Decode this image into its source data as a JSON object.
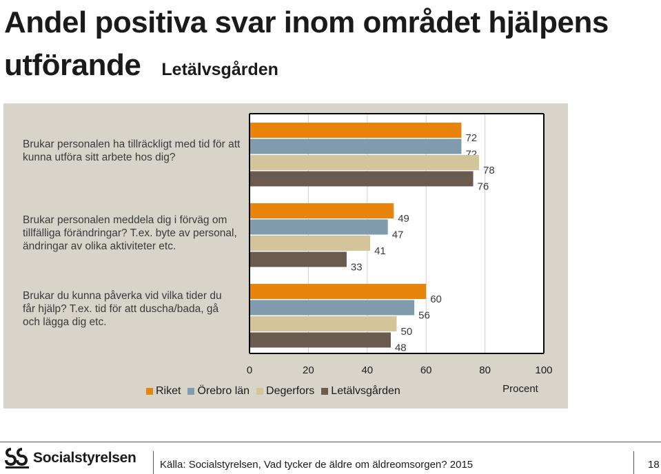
{
  "title": "Andel positiva svar inom området hjälpens utförande",
  "subtitle": "Letälvsgården",
  "chart_data": {
    "type": "bar",
    "orientation": "horizontal",
    "categories": [
      "Brukar personalen ha tillräckligt med tid för att kunna utföra sitt arbete hos dig?",
      "Brukar personalen meddela dig i förväg om tillfälliga förändringar? T.ex. byte av personal, ändringar av olika aktiviteter etc.",
      "Brukar du kunna påverka vid vilka tider du får hjälp? T.ex. tid för att duscha/bada, gå och lägga dig etc."
    ],
    "series": [
      {
        "name": "Riket",
        "color": "#e8830c",
        "values": [
          72,
          49,
          60
        ]
      },
      {
        "name": "Örebro län",
        "color": "#7f9bad",
        "values": [
          72,
          47,
          56
        ]
      },
      {
        "name": "Degerfors",
        "color": "#d4c49a",
        "values": [
          78,
          41,
          50
        ]
      },
      {
        "name": "Letälvsgården",
        "color": "#6b5a4e",
        "values": [
          76,
          33,
          48
        ]
      }
    ],
    "xlim": [
      0,
      100
    ],
    "xticks": [
      "0",
      "20",
      "40",
      "60",
      "80",
      "100"
    ],
    "xlabel": "Procent"
  },
  "footer": {
    "logo_text": "Socialstyrelsen",
    "source": "Källa: Socialstyrelsen, Vad tycker de äldre om äldreomsorgen? 2015",
    "page": "18"
  }
}
